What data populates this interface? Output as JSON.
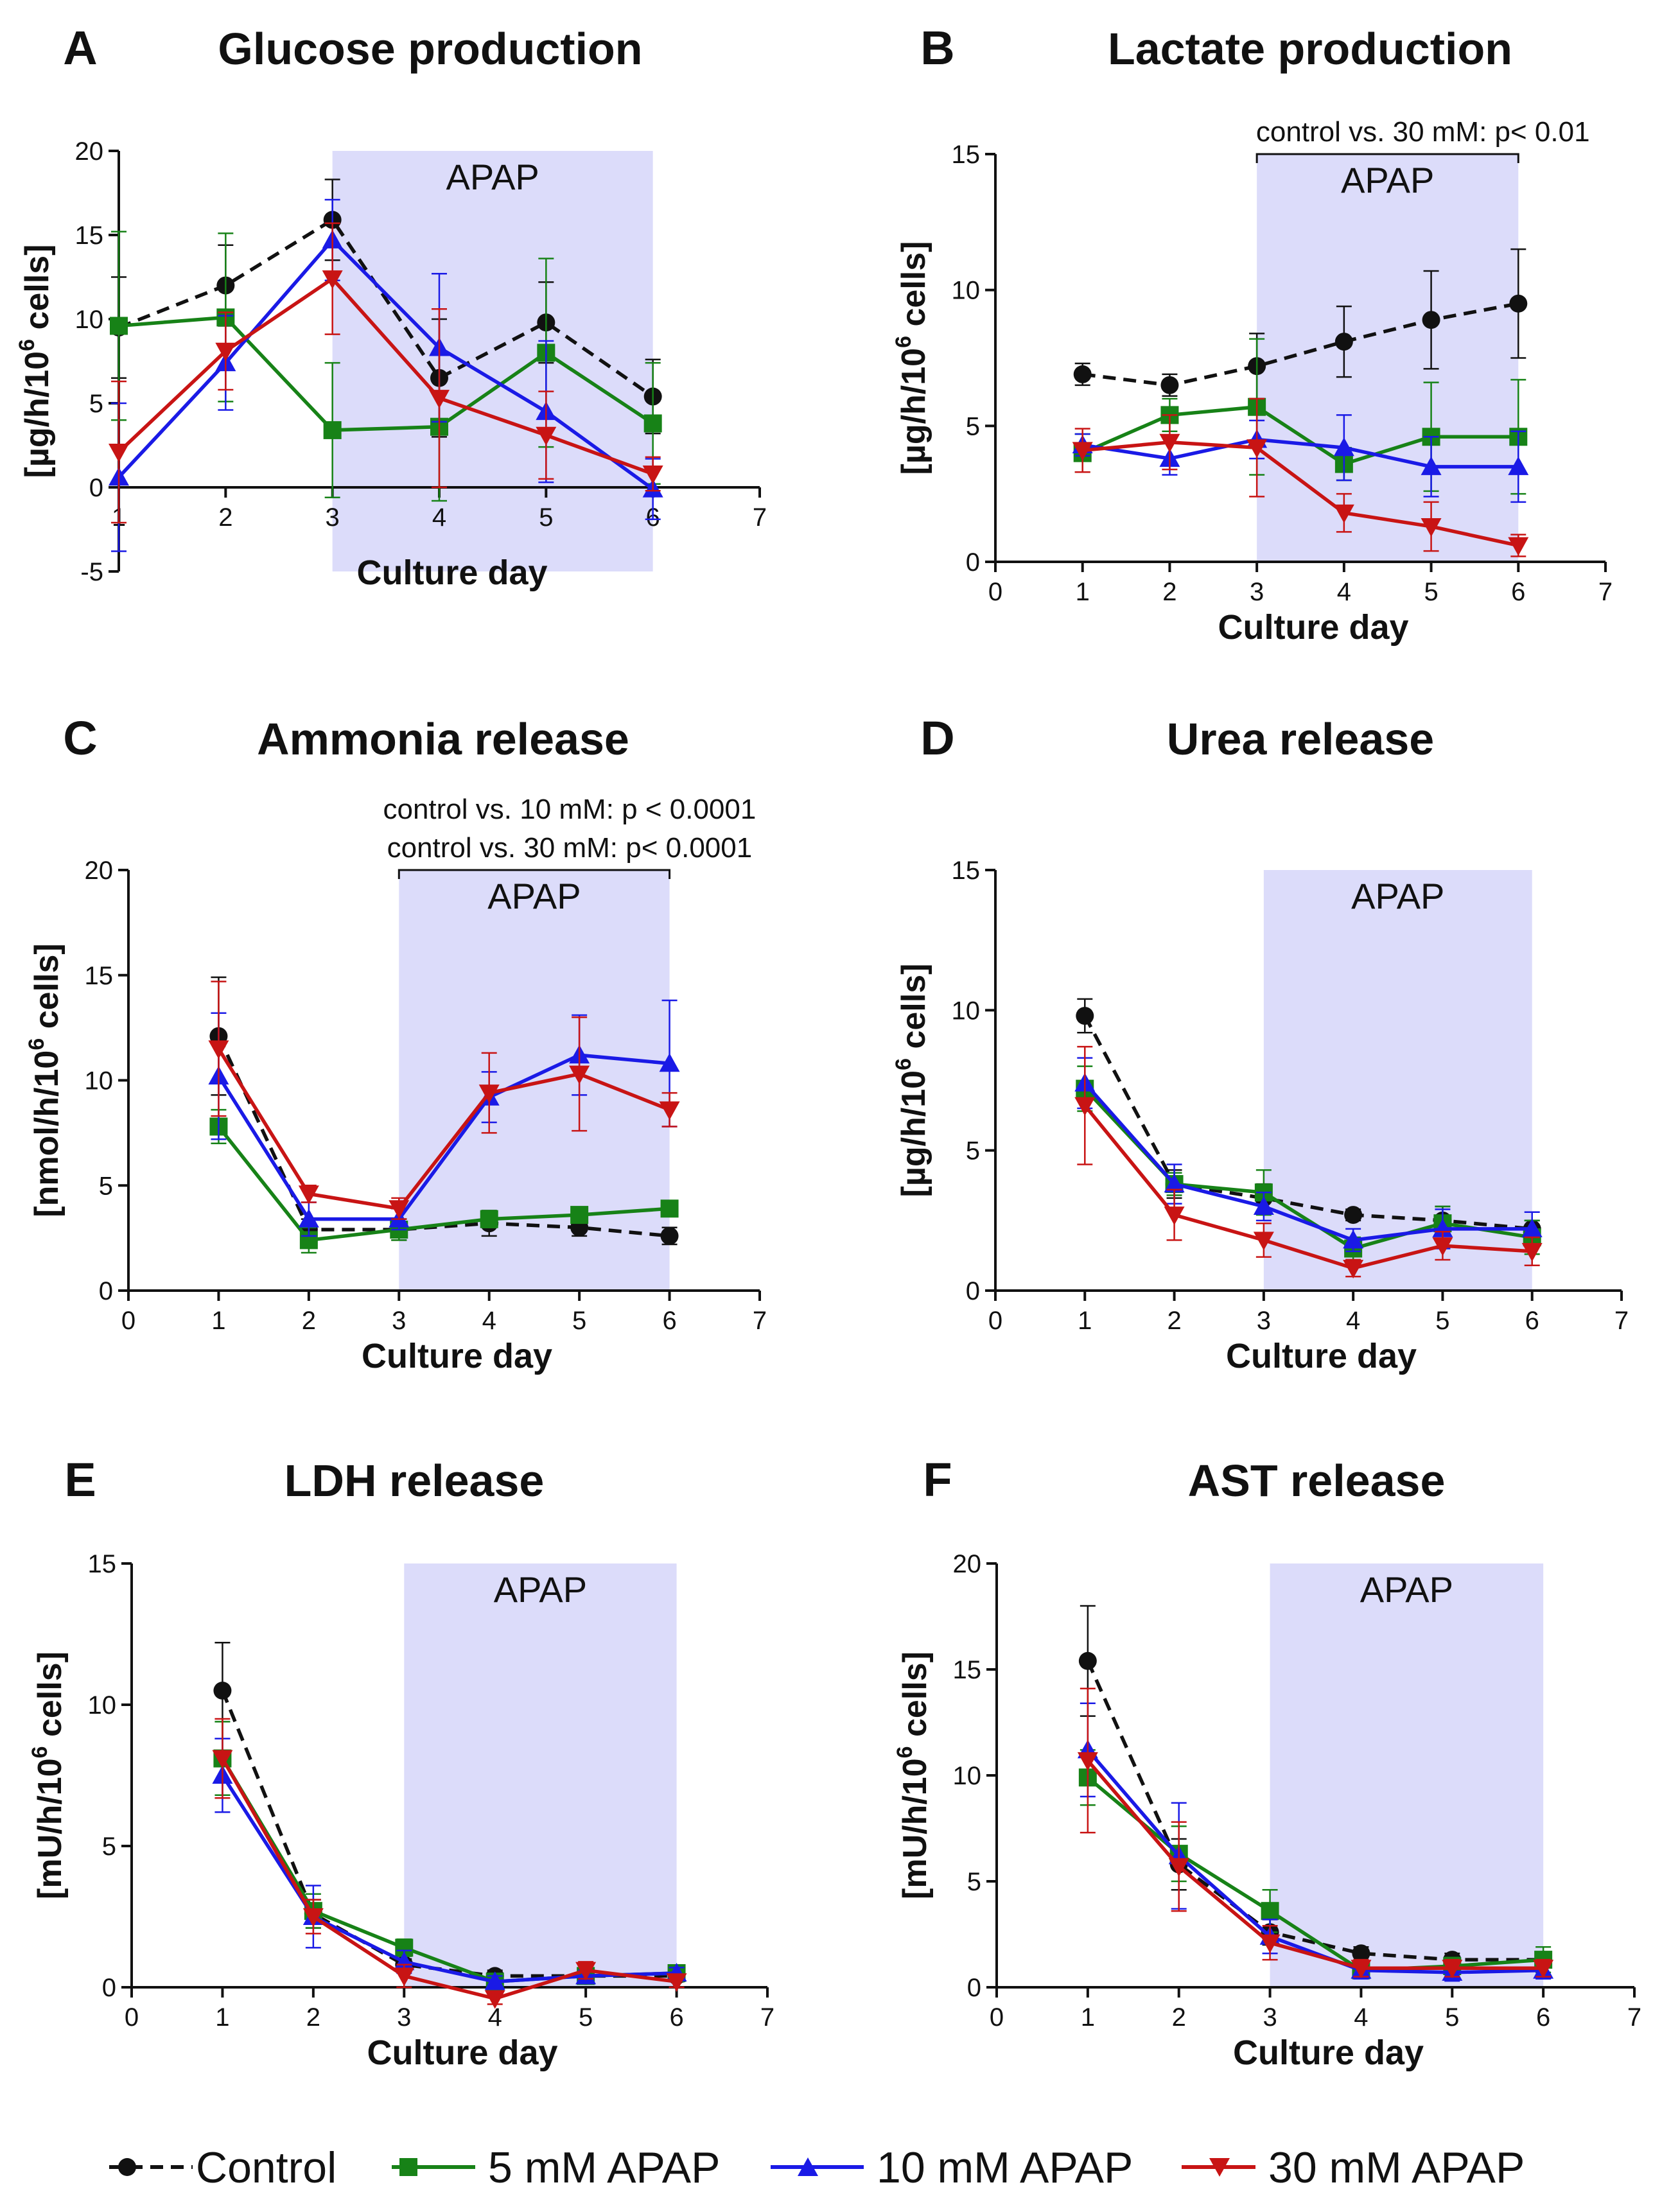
{
  "colors": {
    "control": "#111111",
    "mM5": "#178217",
    "mM10": "#1a1ae6",
    "mM30": "#c81414",
    "apap_shade": "#dcdcfa"
  },
  "legend": {
    "control": "Control",
    "mM5": "5 mM APAP",
    "mM10": "10 mM APAP",
    "mM30": "30 mM APAP"
  },
  "chart_data": [
    {
      "type": "line",
      "letter": "A",
      "title": "Glucose production",
      "xlabel": "Culture day",
      "ylabel_main": "[µg/h/10",
      "ylabel_sup": "6",
      "ylabel_tail": " cells]",
      "xlim": [
        1,
        7
      ],
      "ylim": [
        -5,
        20
      ],
      "xticks": [
        1,
        2,
        3,
        4,
        5,
        6,
        7
      ],
      "yticks": [
        -5,
        0,
        5,
        10,
        15,
        20
      ],
      "shade": [
        3,
        6
      ],
      "shade_label": "APAP",
      "annotations": [],
      "series": [
        {
          "key": "control",
          "name": "Control",
          "x": [
            1,
            2,
            3,
            4,
            5,
            6
          ],
          "y": [
            9.5,
            12.0,
            15.9,
            6.5,
            9.8,
            5.4
          ],
          "err": [
            3.0,
            2.4,
            2.4,
            3.5,
            2.4,
            2.2
          ]
        },
        {
          "key": "mM5",
          "name": "5 mM APAP",
          "x": [
            1,
            2,
            3,
            4,
            5,
            6
          ],
          "y": [
            9.6,
            10.1,
            3.4,
            3.6,
            8.0,
            3.8
          ],
          "err": [
            5.6,
            5.0,
            4.0,
            4.4,
            5.6,
            3.6
          ]
        },
        {
          "key": "mM10",
          "name": "10 mM APAP",
          "x": [
            1,
            2,
            3,
            4,
            5,
            6
          ],
          "y": [
            0.6,
            7.4,
            14.7,
            8.3,
            4.5,
            -0.1
          ],
          "err": [
            4.4,
            2.8,
            2.4,
            4.4,
            4.2,
            1.8
          ]
        },
        {
          "key": "mM30",
          "name": "30 mM APAP",
          "x": [
            1,
            2,
            3,
            4,
            5,
            6
          ],
          "y": [
            2.1,
            8.1,
            12.4,
            5.3,
            3.1,
            0.8
          ],
          "err": [
            4.2,
            2.3,
            3.3,
            5.3,
            2.6,
            1.0
          ]
        }
      ]
    },
    {
      "type": "line",
      "letter": "B",
      "title": "Lactate production",
      "xlabel": "Culture day",
      "ylabel_main": "[µg/h/10",
      "ylabel_sup": "6",
      "ylabel_tail": " cells]",
      "xlim": [
        0,
        7
      ],
      "ylim": [
        0,
        15
      ],
      "xticks": [
        0,
        1,
        2,
        3,
        4,
        5,
        6,
        7
      ],
      "yticks": [
        0,
        5,
        10,
        15
      ],
      "shade": [
        3,
        6
      ],
      "shade_label": "APAP",
      "annotations": [
        "control vs. 30 mM: p< 0.01"
      ],
      "series": [
        {
          "key": "control",
          "name": "Control",
          "x": [
            1,
            2,
            3,
            4,
            5,
            6
          ],
          "y": [
            6.9,
            6.5,
            7.2,
            8.1,
            8.9,
            9.5
          ],
          "err": [
            0.4,
            0.4,
            1.2,
            1.3,
            1.8,
            2.0
          ]
        },
        {
          "key": "mM5",
          "name": "5 mM APAP",
          "x": [
            1,
            2,
            3,
            4,
            5,
            6
          ],
          "y": [
            4.0,
            5.4,
            5.7,
            3.6,
            4.6,
            4.6
          ],
          "err": [
            0.7,
            0.6,
            2.5,
            0.6,
            2.0,
            2.1
          ]
        },
        {
          "key": "mM10",
          "name": "10 mM APAP",
          "x": [
            1,
            2,
            3,
            4,
            5,
            6
          ],
          "y": [
            4.3,
            3.8,
            4.5,
            4.2,
            3.5,
            3.5
          ],
          "err": [
            0.4,
            0.6,
            0.7,
            1.2,
            1.1,
            1.3
          ]
        },
        {
          "key": "mM30",
          "name": "30 mM APAP",
          "x": [
            1,
            2,
            3,
            4,
            5,
            6
          ],
          "y": [
            4.1,
            4.4,
            4.2,
            1.8,
            1.3,
            0.6
          ],
          "err": [
            0.8,
            1.0,
            1.8,
            0.7,
            0.9,
            0.4
          ]
        }
      ]
    },
    {
      "type": "line",
      "letter": "C",
      "title": "Ammonia release",
      "xlabel": "Culture day",
      "ylabel_main": "[nmol/h/10",
      "ylabel_sup": "6",
      "ylabel_tail": " cells]",
      "xlim": [
        0,
        7
      ],
      "ylim": [
        0,
        20
      ],
      "xticks": [
        0,
        1,
        2,
        3,
        4,
        5,
        6,
        7
      ],
      "yticks": [
        0,
        5,
        10,
        15,
        20
      ],
      "shade": [
        3,
        6
      ],
      "shade_label": "APAP",
      "annotations": [
        "control vs. 10 mM: p < 0.0001",
        "control vs. 30 mM: p< 0.0001"
      ],
      "series": [
        {
          "key": "control",
          "name": "Control",
          "x": [
            1,
            2,
            3,
            4,
            5,
            6
          ],
          "y": [
            12.1,
            2.9,
            2.9,
            3.2,
            3.0,
            2.6
          ],
          "err": [
            2.8,
            0.5,
            0.5,
            0.6,
            0.4,
            0.4
          ]
        },
        {
          "key": "mM5",
          "name": "5 mM APAP",
          "x": [
            1,
            2,
            3,
            4,
            5,
            6
          ],
          "y": [
            7.8,
            2.4,
            2.9,
            3.4,
            3.6,
            3.9
          ],
          "err": [
            0.8,
            0.6,
            0.5,
            0.4,
            0.3,
            0.3
          ]
        },
        {
          "key": "mM10",
          "name": "10 mM APAP",
          "x": [
            1,
            2,
            3,
            4,
            5,
            6
          ],
          "y": [
            10.2,
            3.4,
            3.4,
            9.2,
            11.2,
            10.8
          ],
          "err": [
            3.0,
            0.8,
            0.5,
            1.2,
            1.9,
            3.0
          ]
        },
        {
          "key": "mM30",
          "name": "30 mM APAP",
          "x": [
            1,
            2,
            3,
            4,
            5,
            6
          ],
          "y": [
            11.5,
            4.6,
            3.9,
            9.4,
            10.3,
            8.6
          ],
          "err": [
            3.2,
            0.4,
            0.5,
            1.9,
            2.7,
            0.8
          ]
        }
      ]
    },
    {
      "type": "line",
      "letter": "D",
      "title": "Urea release",
      "xlabel": "Culture day",
      "ylabel_main": "[µg/h/10",
      "ylabel_sup": "6",
      "ylabel_tail": " cells]",
      "xlim": [
        0,
        7
      ],
      "ylim": [
        0,
        15
      ],
      "xticks": [
        0,
        1,
        2,
        3,
        4,
        5,
        6,
        7
      ],
      "yticks": [
        0,
        5,
        10,
        15
      ],
      "shade": [
        3,
        6
      ],
      "shade_label": "APAP",
      "annotations": [],
      "series": [
        {
          "key": "control",
          "name": "Control",
          "x": [
            1,
            2,
            3,
            4,
            5,
            6
          ],
          "y": [
            9.8,
            3.8,
            3.3,
            2.7,
            2.5,
            2.2
          ],
          "err": [
            0.6,
            0.5,
            0.5,
            0.2,
            0.5,
            0.3
          ]
        },
        {
          "key": "mM5",
          "name": "5 mM APAP",
          "x": [
            1,
            2,
            3,
            4,
            5,
            6
          ],
          "y": [
            7.2,
            3.8,
            3.5,
            1.5,
            2.4,
            1.9
          ],
          "err": [
            0.8,
            0.4,
            0.8,
            0.4,
            0.6,
            0.6
          ]
        },
        {
          "key": "mM10",
          "name": "10 mM APAP",
          "x": [
            1,
            2,
            3,
            4,
            5,
            6
          ],
          "y": [
            7.4,
            3.8,
            3.0,
            1.8,
            2.2,
            2.2
          ],
          "err": [
            0.9,
            0.7,
            0.5,
            0.4,
            0.7,
            0.6
          ]
        },
        {
          "key": "mM30",
          "name": "30 mM APAP",
          "x": [
            1,
            2,
            3,
            4,
            5,
            6
          ],
          "y": [
            6.6,
            2.7,
            1.8,
            0.8,
            1.6,
            1.4
          ],
          "err": [
            2.1,
            0.9,
            0.6,
            0.3,
            0.5,
            0.5
          ]
        }
      ]
    },
    {
      "type": "line",
      "letter": "E",
      "title": "LDH release",
      "xlabel": "Culture day",
      "ylabel_main": "[mU/h/10",
      "ylabel_sup": "6",
      "ylabel_tail": " cells]",
      "xlim": [
        0,
        7
      ],
      "ylim": [
        0,
        15
      ],
      "xticks": [
        0,
        1,
        2,
        3,
        4,
        5,
        6,
        7
      ],
      "yticks": [
        0,
        5,
        10,
        15
      ],
      "shade": [
        3,
        6
      ],
      "shade_label": "APAP",
      "annotations": [],
      "series": [
        {
          "key": "control",
          "name": "Control",
          "x": [
            1,
            2,
            3,
            4,
            5,
            6
          ],
          "y": [
            10.5,
            2.6,
            0.8,
            0.4,
            0.4,
            0.4
          ],
          "err": [
            1.7,
            0.5,
            0.2,
            0.2,
            0.2,
            0.2
          ]
        },
        {
          "key": "mM5",
          "name": "5 mM APAP",
          "x": [
            1,
            2,
            3,
            4,
            5,
            6
          ],
          "y": [
            8.1,
            2.7,
            1.4,
            0.2,
            0.4,
            0.5
          ],
          "err": [
            1.3,
            0.6,
            0.3,
            0.2,
            0.2,
            0.2
          ]
        },
        {
          "key": "mM10",
          "name": "10 mM APAP",
          "x": [
            1,
            2,
            3,
            4,
            5,
            6
          ],
          "y": [
            7.5,
            2.5,
            0.9,
            0.2,
            0.4,
            0.5
          ],
          "err": [
            1.3,
            1.1,
            0.4,
            0.2,
            0.2,
            0.2
          ]
        },
        {
          "key": "mM30",
          "name": "30 mM APAP",
          "x": [
            1,
            2,
            3,
            4,
            5,
            6
          ],
          "y": [
            8.1,
            2.5,
            0.4,
            -0.4,
            0.6,
            0.2
          ],
          "err": [
            1.4,
            0.6,
            0.4,
            0.2,
            0.3,
            0.2
          ]
        }
      ]
    },
    {
      "type": "line",
      "letter": "F",
      "title": "AST release",
      "xlabel": "Culture day",
      "ylabel_main": "[mU/h/10",
      "ylabel_sup": "6",
      "ylabel_tail": " cells]",
      "xlim": [
        0,
        7
      ],
      "ylim": [
        0,
        20
      ],
      "xticks": [
        0,
        1,
        2,
        3,
        4,
        5,
        6,
        7
      ],
      "yticks": [
        0,
        5,
        10,
        15,
        20
      ],
      "shade": [
        3,
        6
      ],
      "shade_label": "APAP",
      "annotations": [],
      "series": [
        {
          "key": "control",
          "name": "Control",
          "x": [
            1,
            2,
            3,
            4,
            5,
            6
          ],
          "y": [
            15.4,
            5.8,
            2.6,
            1.6,
            1.3,
            1.3
          ],
          "err": [
            2.6,
            1.2,
            0.6,
            0.3,
            0.3,
            0.3
          ]
        },
        {
          "key": "mM5",
          "name": "5 mM APAP",
          "x": [
            1,
            2,
            3,
            4,
            5,
            6
          ],
          "y": [
            9.9,
            6.3,
            3.6,
            0.8,
            1.0,
            1.3
          ],
          "err": [
            1.3,
            1.3,
            1.0,
            0.4,
            0.4,
            0.6
          ]
        },
        {
          "key": "mM10",
          "name": "10 mM APAP",
          "x": [
            1,
            2,
            3,
            4,
            5,
            6
          ],
          "y": [
            11.2,
            6.2,
            2.4,
            0.8,
            0.7,
            0.8
          ],
          "err": [
            2.2,
            2.5,
            0.8,
            0.4,
            0.4,
            0.4
          ]
        },
        {
          "key": "mM30",
          "name": "30 mM APAP",
          "x": [
            1,
            2,
            3,
            4,
            5,
            6
          ],
          "y": [
            10.7,
            5.7,
            2.1,
            0.9,
            0.9,
            0.9
          ],
          "err": [
            3.4,
            2.1,
            0.8,
            0.4,
            0.4,
            0.4
          ]
        }
      ]
    }
  ]
}
